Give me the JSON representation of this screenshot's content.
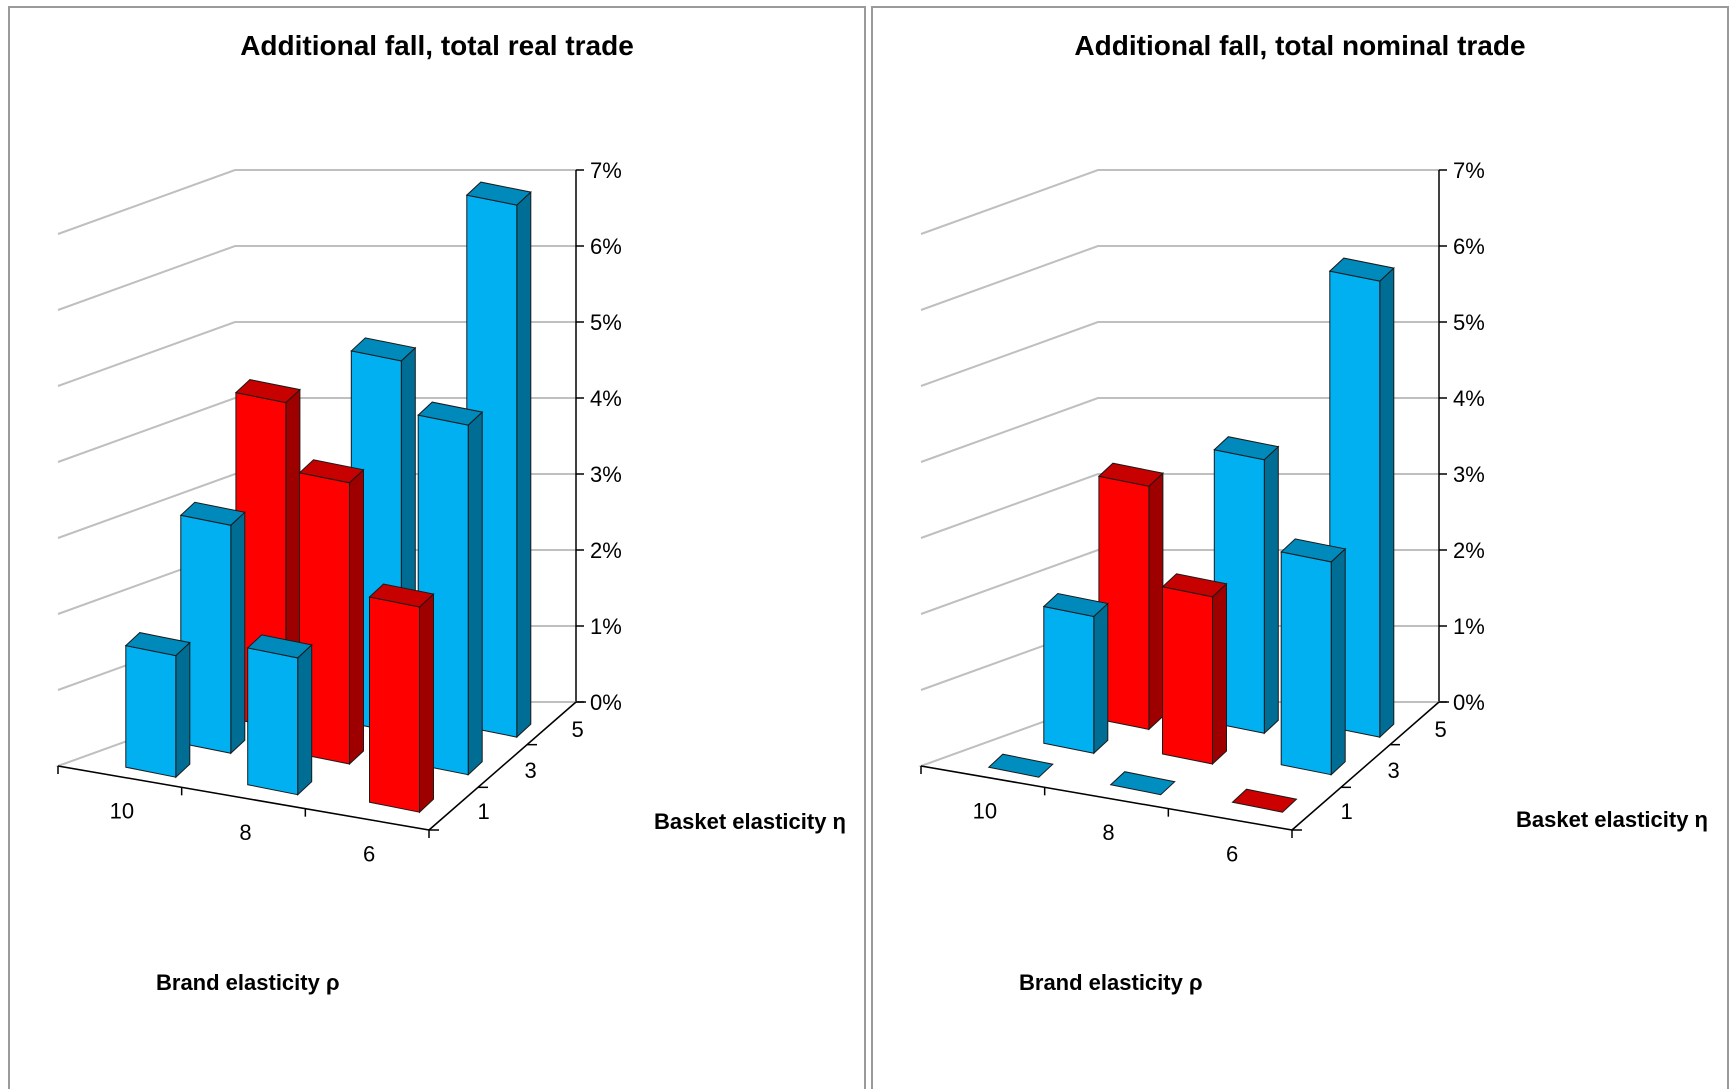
{
  "colors": {
    "blue": "#00b0f0",
    "red": "#ff0000",
    "grid": "#bfbfbf"
  },
  "chart_data": [
    {
      "type": "bar3d",
      "title": "Additional fall, total real trade",
      "x_axis_label": "Brand elasticity ρ",
      "x_categories": [
        "10",
        "8",
        "6"
      ],
      "depth_axis_label": "Basket elasticity η",
      "depth_categories": [
        "1",
        "3",
        "5"
      ],
      "z_ticks": [
        "0%",
        "1%",
        "2%",
        "3%",
        "4%",
        "5%",
        "6%",
        "7%"
      ],
      "zlim": [
        0,
        7
      ],
      "values": [
        {
          "rho": "10",
          "eta": "1",
          "value": 1.6,
          "color": "blue"
        },
        {
          "rho": "10",
          "eta": "3",
          "value": 3.0,
          "color": "blue"
        },
        {
          "rho": "10",
          "eta": "5",
          "value": 4.3,
          "color": "red"
        },
        {
          "rho": "8",
          "eta": "1",
          "value": 1.8,
          "color": "blue"
        },
        {
          "rho": "8",
          "eta": "3",
          "value": 3.7,
          "color": "red"
        },
        {
          "rho": "8",
          "eta": "5",
          "value": 4.9,
          "color": "blue"
        },
        {
          "rho": "6",
          "eta": "1",
          "value": 2.7,
          "color": "red"
        },
        {
          "rho": "6",
          "eta": "3",
          "value": 4.6,
          "color": "blue"
        },
        {
          "rho": "6",
          "eta": "5",
          "value": 7.0,
          "color": "blue"
        }
      ]
    },
    {
      "type": "bar3d",
      "title": "Additional fall, total nominal trade",
      "x_axis_label": "Brand elasticity ρ",
      "x_categories": [
        "10",
        "8",
        "6"
      ],
      "depth_axis_label": "Basket elasticity η",
      "depth_categories": [
        "1",
        "3",
        "5"
      ],
      "z_ticks": [
        "0%",
        "1%",
        "2%",
        "3%",
        "4%",
        "5%",
        "6%",
        "7%"
      ],
      "zlim": [
        0,
        7
      ],
      "values": [
        {
          "rho": "10",
          "eta": "1",
          "value": 0.0,
          "color": "blue"
        },
        {
          "rho": "10",
          "eta": "3",
          "value": 1.8,
          "color": "blue"
        },
        {
          "rho": "10",
          "eta": "5",
          "value": 3.2,
          "color": "red"
        },
        {
          "rho": "8",
          "eta": "1",
          "value": 0.0,
          "color": "blue"
        },
        {
          "rho": "8",
          "eta": "3",
          "value": 2.2,
          "color": "red"
        },
        {
          "rho": "8",
          "eta": "5",
          "value": 3.6,
          "color": "blue"
        },
        {
          "rho": "6",
          "eta": "1",
          "value": 0.0,
          "color": "red"
        },
        {
          "rho": "6",
          "eta": "3",
          "value": 2.8,
          "color": "blue"
        },
        {
          "rho": "6",
          "eta": "5",
          "value": 6.0,
          "color": "blue"
        }
      ]
    }
  ]
}
